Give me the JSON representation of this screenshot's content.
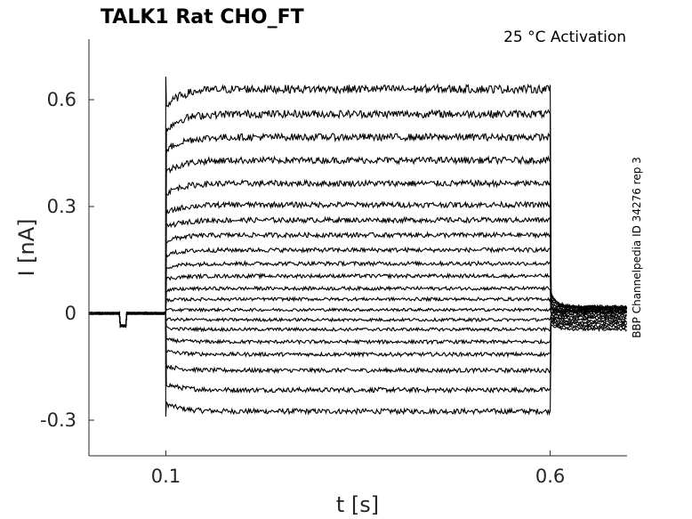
{
  "chart_data": {
    "type": "line",
    "title": "TALK1  Rat  CHO_FT",
    "annotation": "25 °C  Activation",
    "side_label": "BBP Channelpedia ID 34276 rep 3",
    "xlabel": "t [s]",
    "ylabel": "I [nA]",
    "xlim": [
      0.0,
      0.7
    ],
    "ylim": [
      -0.4,
      0.77
    ],
    "x_ticks": [
      0.1,
      0.6
    ],
    "x_tick_labels": [
      "0.1",
      "0.6"
    ],
    "y_ticks": [
      -0.3,
      0,
      0.3,
      0.6
    ],
    "y_tick_labels": [
      "-0.3",
      "0",
      "0.3",
      "0.6"
    ],
    "grid": false,
    "protocol": {
      "hold_current": 0.0,
      "prepulse_window": [
        0.04,
        0.048
      ],
      "prepulse_current": -0.035,
      "step_window": [
        0.1,
        0.6
      ],
      "tail_end": 0.7
    },
    "series": [
      {
        "step_current": -0.275,
        "tail_current": -0.045
      },
      {
        "step_current": -0.215,
        "tail_current": -0.04
      },
      {
        "step_current": -0.16,
        "tail_current": -0.035
      },
      {
        "step_current": -0.115,
        "tail_current": -0.03
      },
      {
        "step_current": -0.08,
        "tail_current": -0.025
      },
      {
        "step_current": -0.045,
        "tail_current": -0.02
      },
      {
        "step_current": -0.018,
        "tail_current": -0.015
      },
      {
        "step_current": 0.01,
        "tail_current": -0.01
      },
      {
        "step_current": 0.04,
        "tail_current": -0.006
      },
      {
        "step_current": 0.07,
        "tail_current": -0.002
      },
      {
        "step_current": 0.105,
        "tail_current": 0.002
      },
      {
        "step_current": 0.14,
        "tail_current": 0.004
      },
      {
        "step_current": 0.178,
        "tail_current": 0.006
      },
      {
        "step_current": 0.22,
        "tail_current": 0.008
      },
      {
        "step_current": 0.262,
        "tail_current": 0.01
      },
      {
        "step_current": 0.305,
        "tail_current": 0.012
      },
      {
        "step_current": 0.365,
        "tail_current": 0.014
      },
      {
        "step_current": 0.43,
        "tail_current": 0.016
      },
      {
        "step_current": 0.495,
        "tail_current": 0.017
      },
      {
        "step_current": 0.56,
        "tail_current": 0.018
      },
      {
        "step_current": 0.63,
        "tail_current": 0.019
      }
    ]
  }
}
